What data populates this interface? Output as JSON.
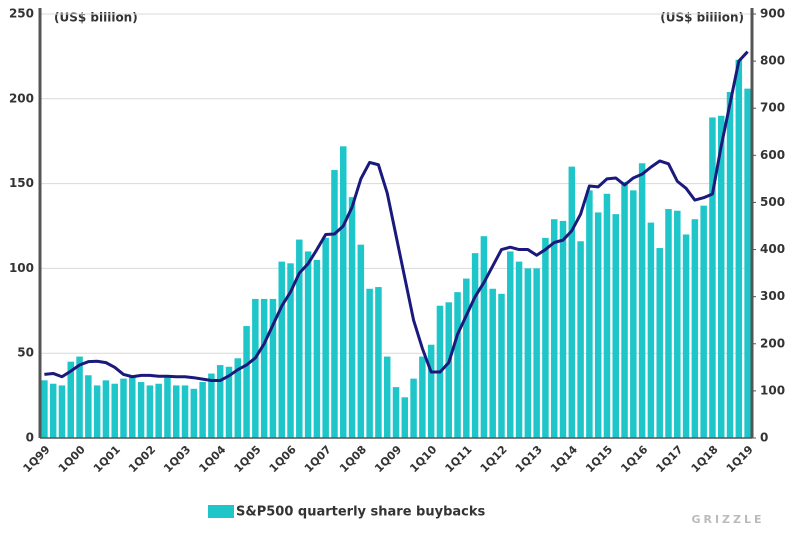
{
  "chart_data": {
    "type": "bar",
    "categories": [
      "1Q99",
      null,
      null,
      null,
      "1Q00",
      null,
      null,
      null,
      "1Q01",
      null,
      null,
      null,
      "1Q02",
      null,
      null,
      null,
      "1Q03",
      null,
      null,
      null,
      "1Q04",
      null,
      null,
      null,
      "1Q05",
      null,
      null,
      null,
      "1Q06",
      null,
      null,
      null,
      "1Q07",
      null,
      null,
      null,
      "1Q08",
      null,
      null,
      null,
      "1Q09",
      null,
      null,
      null,
      "1Q10",
      null,
      null,
      null,
      "1Q11",
      null,
      null,
      null,
      "1Q12",
      null,
      null,
      null,
      "1Q13",
      null,
      null,
      null,
      "1Q14",
      null,
      null,
      null,
      "1Q15",
      null,
      null,
      null,
      "1Q16",
      null,
      null,
      null,
      "1Q17",
      null,
      null,
      null,
      "1Q18",
      null,
      null,
      null,
      "1Q19"
    ],
    "series": [
      {
        "name": "S&P500 quarterly share buybacks",
        "type": "bar",
        "color": "#1fc6c9",
        "values": [
          34,
          32,
          31,
          45,
          48,
          37,
          31,
          34,
          32,
          35,
          36,
          33,
          31,
          32,
          36,
          31,
          31,
          29,
          33,
          38,
          43,
          42,
          47,
          66,
          82,
          82,
          82,
          104,
          103,
          117,
          110,
          105,
          118,
          158,
          172,
          142,
          114,
          88,
          89,
          48,
          30,
          24,
          35,
          48,
          55,
          78,
          80,
          86,
          94,
          109,
          119,
          88,
          85,
          110,
          104,
          100,
          100,
          118,
          129,
          128,
          160,
          116,
          146,
          133,
          144,
          132,
          151,
          146,
          162,
          127,
          112,
          135,
          134,
          120,
          129,
          137,
          189,
          190,
          204,
          223,
          206
        ]
      },
      {
        "type": "line",
        "axis": "y2",
        "color": "#1b1a7c",
        "values": [
          135,
          137,
          130,
          142,
          155,
          162,
          163,
          160,
          150,
          135,
          130,
          133,
          133,
          131,
          131,
          130,
          130,
          128,
          125,
          122,
          122,
          132,
          145,
          155,
          170,
          200,
          240,
          280,
          310,
          350,
          370,
          400,
          432,
          433,
          450,
          490,
          550,
          585,
          580,
          520,
          430,
          340,
          250,
          190,
          140,
          140,
          160,
          220,
          260,
          300,
          330,
          365,
          400,
          405,
          400,
          400,
          388,
          400,
          415,
          420,
          440,
          475,
          535,
          533,
          550,
          552,
          537,
          552,
          560,
          575,
          588,
          582,
          545,
          530,
          505,
          510,
          518,
          620,
          710,
          800,
          820
        ]
      }
    ],
    "ylim": [
      0,
      250
    ],
    "yticks": [
      0,
      50,
      100,
      150,
      200,
      250
    ],
    "y2lim": [
      0,
      900
    ],
    "y2ticks": [
      0,
      100,
      200,
      300,
      400,
      500,
      600,
      700,
      800,
      900
    ],
    "ylabel": "(US$ billion)",
    "y2label": "(US$ billion)",
    "grid": true,
    "watermark": "GRIZZLE"
  }
}
